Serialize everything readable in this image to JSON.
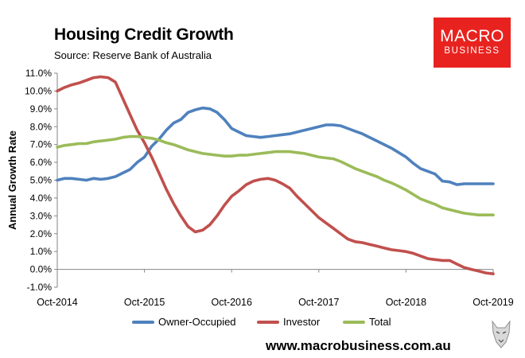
{
  "title": "Housing Credit Growth",
  "source": "Source: Reserve Bank of Australia",
  "logo": {
    "top": "MACRO",
    "bottom": "BUSINESS"
  },
  "footer_url": "www.macrobusiness.com.au",
  "colors": {
    "owner_occupied": "#4f81bd",
    "investor": "#c0504d",
    "total": "#9bbb59",
    "logo_bg": "#e8231f"
  },
  "chart_data": {
    "type": "line",
    "title": "Housing Credit Growth",
    "ylabel": "Annual Growth Rate",
    "xlabel": "",
    "ylim": [
      -1.0,
      11.0
    ],
    "y_ticks": [
      "-1.0%",
      "0.0%",
      "1.0%",
      "2.0%",
      "3.0%",
      "4.0%",
      "5.0%",
      "6.0%",
      "7.0%",
      "8.0%",
      "9.0%",
      "10.0%",
      "11.0%"
    ],
    "x_ticks": [
      "Oct-2014",
      "Oct-2015",
      "Oct-2016",
      "Oct-2017",
      "Oct-2018",
      "Oct-2019"
    ],
    "x": [
      "Oct-2014",
      "Nov-2014",
      "Dec-2014",
      "Jan-2015",
      "Feb-2015",
      "Mar-2015",
      "Apr-2015",
      "May-2015",
      "Jun-2015",
      "Jul-2015",
      "Aug-2015",
      "Sep-2015",
      "Oct-2015",
      "Nov-2015",
      "Dec-2015",
      "Jan-2016",
      "Feb-2016",
      "Mar-2016",
      "Apr-2016",
      "May-2016",
      "Jun-2016",
      "Jul-2016",
      "Aug-2016",
      "Sep-2016",
      "Oct-2016",
      "Nov-2016",
      "Dec-2016",
      "Jan-2017",
      "Feb-2017",
      "Mar-2017",
      "Apr-2017",
      "May-2017",
      "Jun-2017",
      "Jul-2017",
      "Aug-2017",
      "Sep-2017",
      "Oct-2017",
      "Nov-2017",
      "Dec-2017",
      "Jan-2018",
      "Feb-2018",
      "Mar-2018",
      "Apr-2018",
      "May-2018",
      "Jun-2018",
      "Jul-2018",
      "Aug-2018",
      "Sep-2018",
      "Oct-2018",
      "Nov-2018",
      "Dec-2018",
      "Jan-2019",
      "Feb-2019",
      "Mar-2019",
      "Apr-2019",
      "May-2019",
      "Jun-2019",
      "Jul-2019",
      "Aug-2019",
      "Sep-2019",
      "Oct-2019"
    ],
    "series": [
      {
        "name": "Owner-Occupied",
        "color": "#4f81bd",
        "values": [
          5.0,
          5.1,
          5.1,
          5.05,
          5.0,
          5.1,
          5.05,
          5.1,
          5.2,
          5.4,
          5.6,
          6.0,
          6.3,
          6.9,
          7.3,
          7.8,
          8.2,
          8.4,
          8.8,
          8.95,
          9.05,
          9.0,
          8.8,
          8.4,
          7.9,
          7.7,
          7.5,
          7.45,
          7.4,
          7.45,
          7.5,
          7.55,
          7.6,
          7.7,
          7.8,
          7.9,
          8.0,
          8.1,
          8.1,
          8.05,
          7.9,
          7.75,
          7.6,
          7.4,
          7.2,
          7.0,
          6.8,
          6.55,
          6.3,
          5.95,
          5.65,
          5.5,
          5.35,
          4.95,
          4.9,
          4.75,
          4.8,
          4.8,
          4.8,
          4.8,
          4.8
        ]
      },
      {
        "name": "Investor",
        "color": "#c0504d",
        "values": [
          10.0,
          10.2,
          10.35,
          10.45,
          10.6,
          10.75,
          10.8,
          10.75,
          10.5,
          9.6,
          8.7,
          7.8,
          7.1,
          6.3,
          5.4,
          4.5,
          3.7,
          3.0,
          2.4,
          2.1,
          2.2,
          2.5,
          3.0,
          3.6,
          4.1,
          4.4,
          4.75,
          4.95,
          5.05,
          5.1,
          5.0,
          4.8,
          4.55,
          4.1,
          3.7,
          3.3,
          2.9,
          2.6,
          2.3,
          2.0,
          1.7,
          1.55,
          1.5,
          1.4,
          1.3,
          1.2,
          1.1,
          1.05,
          1.0,
          0.9,
          0.75,
          0.6,
          0.55,
          0.5,
          0.5,
          0.3,
          0.1,
          0.0,
          -0.1,
          -0.2,
          -0.25
        ]
      },
      {
        "name": "Total",
        "color": "#9bbb59",
        "values": [
          6.85,
          6.95,
          7.0,
          7.05,
          7.05,
          7.15,
          7.2,
          7.25,
          7.3,
          7.4,
          7.45,
          7.45,
          7.4,
          7.35,
          7.25,
          7.1,
          7.0,
          6.85,
          6.7,
          6.6,
          6.5,
          6.45,
          6.4,
          6.35,
          6.35,
          6.4,
          6.4,
          6.45,
          6.5,
          6.55,
          6.6,
          6.6,
          6.6,
          6.55,
          6.5,
          6.4,
          6.3,
          6.25,
          6.2,
          6.05,
          5.85,
          5.65,
          5.5,
          5.35,
          5.2,
          5.0,
          4.85,
          4.65,
          4.45,
          4.2,
          3.95,
          3.8,
          3.65,
          3.45,
          3.35,
          3.25,
          3.15,
          3.1,
          3.05,
          3.05,
          3.05
        ]
      }
    ],
    "grid": false,
    "legend": "bottom"
  }
}
